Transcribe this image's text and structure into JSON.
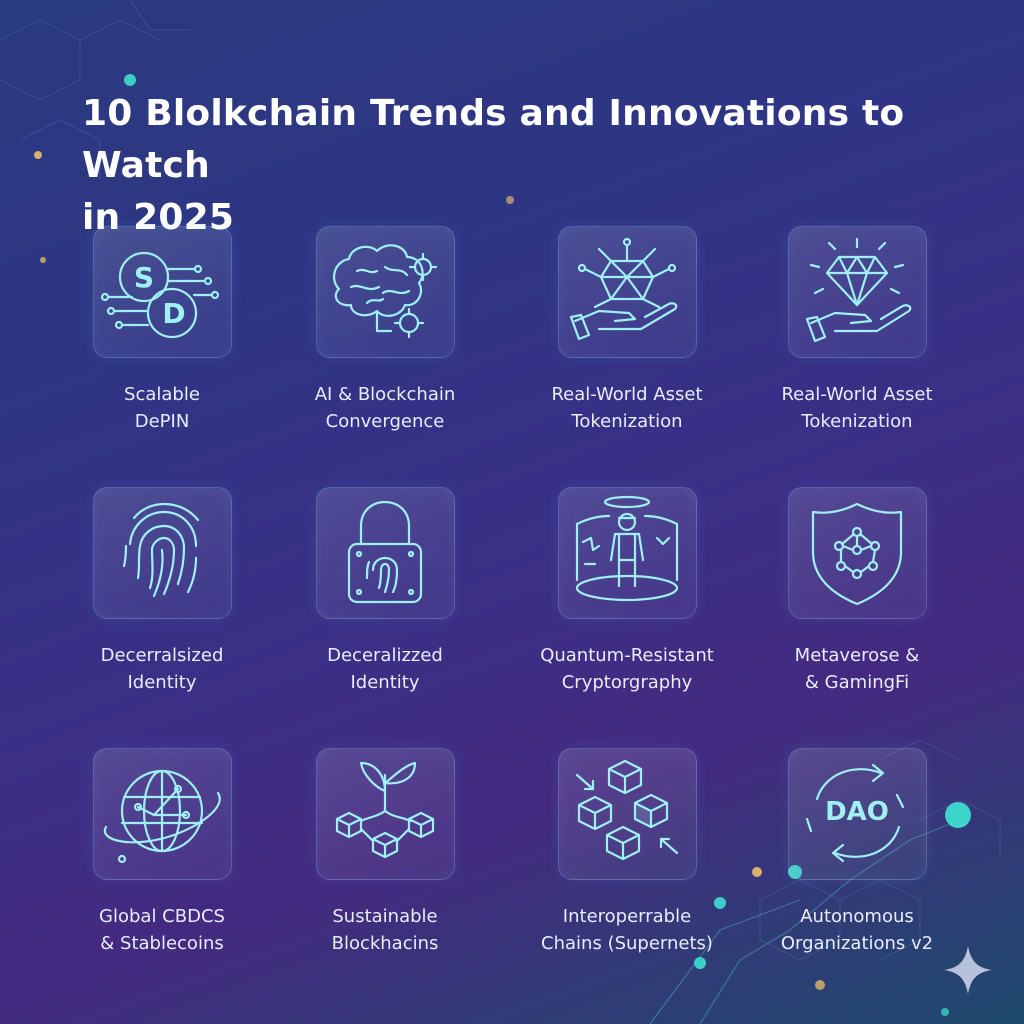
{
  "title": {
    "line1": "10 Blolkchain Trends and Innovations to Watch",
    "line2": "in 2025"
  },
  "colors": {
    "accent": "#9ff0f5",
    "glow_teal": "#3ee6d5",
    "glow_gold": "#f5c86a",
    "text": "#e8ecff"
  },
  "cards": [
    {
      "icon": "sd-network-icon",
      "line1": "Scalable",
      "line2": "DePIN",
      "icon_text_1": "S",
      "icon_text_2": "D"
    },
    {
      "icon": "brain-gears-icon",
      "line1": "AI & Blockchain",
      "line2": "Convergence"
    },
    {
      "icon": "hand-gem-network-icon",
      "line1": "Real-World Asset",
      "line2": "Tokenization"
    },
    {
      "icon": "hand-diamond-icon",
      "line1": "Real-World Asset",
      "line2": "Tokenization"
    },
    {
      "icon": "fingerprint-icon",
      "line1": "Decerralsized",
      "line2": "Identity"
    },
    {
      "icon": "padlock-fingerprint-icon",
      "line1": "Deceralizzed",
      "line2": "Identity"
    },
    {
      "icon": "vr-person-icon",
      "line1": "Quantum-Resistant",
      "line2": "Cryptorgraphy"
    },
    {
      "icon": "shield-network-icon",
      "line1": "Metaverose &",
      "line2": "& GamingFi"
    },
    {
      "icon": "globe-orbit-icon",
      "line1": "Global CBDCS",
      "line2": "& Stablecoins"
    },
    {
      "icon": "sprout-blocks-icon",
      "line1": "Sustainable",
      "line2": "Blockhacins"
    },
    {
      "icon": "cubes-arrows-icon",
      "line1": "Interoperrable",
      "line2": "Chains (Supernets)"
    },
    {
      "icon": "dao-cycle-icon",
      "line1": "Autonomous",
      "line2": "Organizations v2",
      "icon_text_1": "DAO"
    }
  ]
}
